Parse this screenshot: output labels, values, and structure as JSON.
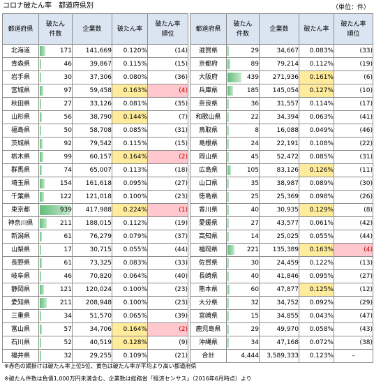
{
  "title": "コロナ破たん率　都道府県別",
  "unit": "（単位：件）",
  "headers": {
    "pref": "都道府県",
    "cnt1": "破たん",
    "cnt2": "件数",
    "companies": "企業数",
    "rate": "破たん率",
    "rank1": "破たん率",
    "rank2": "順位"
  },
  "colors": {
    "header_bg": "#dbe5f1",
    "top5": "#ffc7ce",
    "above_avg": "#ffeb9c",
    "bar": "#63be7b"
  },
  "left_rows": [
    {
      "pref": "北海道",
      "count": "171",
      "companies": "141,669",
      "rate": "0.120%",
      "rank": "(14)",
      "cv": 171,
      "hl": ""
    },
    {
      "pref": "青森県",
      "count": "46",
      "companies": "39,867",
      "rate": "0.115%",
      "rank": "(15)",
      "cv": 46,
      "hl": ""
    },
    {
      "pref": "岩手県",
      "count": "30",
      "companies": "37,306",
      "rate": "0.080%",
      "rank": "(36)",
      "cv": 30,
      "hl": ""
    },
    {
      "pref": "宮城県",
      "count": "97",
      "companies": "59,458",
      "rate": "0.163%",
      "rank": "(4)",
      "cv": 97,
      "hl": "r"
    },
    {
      "pref": "秋田県",
      "count": "27",
      "companies": "33,126",
      "rate": "0.081%",
      "rank": "(35)",
      "cv": 27,
      "hl": ""
    },
    {
      "pref": "山形県",
      "count": "56",
      "companies": "38,790",
      "rate": "0.144%",
      "rank": "(7)",
      "cv": 56,
      "hl": "y"
    },
    {
      "pref": "福島県",
      "count": "50",
      "companies": "58,708",
      "rate": "0.085%",
      "rank": "(31)",
      "cv": 50,
      "hl": ""
    },
    {
      "pref": "茨城県",
      "count": "92",
      "companies": "79,542",
      "rate": "0.115%",
      "rank": "(15)",
      "cv": 92,
      "hl": ""
    },
    {
      "pref": "栃木県",
      "count": "99",
      "companies": "60,157",
      "rate": "0.164%",
      "rank": "(2)",
      "cv": 99,
      "hl": "r"
    },
    {
      "pref": "群馬県",
      "count": "74",
      "companies": "65,007",
      "rate": "0.113%",
      "rank": "(18)",
      "cv": 74,
      "hl": ""
    },
    {
      "pref": "埼玉県",
      "count": "154",
      "companies": "161,618",
      "rate": "0.095%",
      "rank": "(27)",
      "cv": 154,
      "hl": ""
    },
    {
      "pref": "千葉県",
      "count": "122",
      "companies": "121,018",
      "rate": "0.100%",
      "rank": "(23)",
      "cv": 122,
      "hl": ""
    },
    {
      "pref": "東京都",
      "count": "939",
      "companies": "417,988",
      "rate": "0.224%",
      "rank": "(1)",
      "cv": 939,
      "hl": "r"
    },
    {
      "pref": "神奈川県",
      "count": "211",
      "companies": "188,015",
      "rate": "0.112%",
      "rank": "(19)",
      "cv": 211,
      "hl": ""
    },
    {
      "pref": "新潟県",
      "count": "61",
      "companies": "76,279",
      "rate": "0.079%",
      "rank": "(37)",
      "cv": 61,
      "hl": ""
    },
    {
      "pref": "山梨県",
      "count": "17",
      "companies": "30,715",
      "rate": "0.055%",
      "rank": "(44)",
      "cv": 17,
      "hl": ""
    },
    {
      "pref": "長野県",
      "count": "61",
      "companies": "73,325",
      "rate": "0.083%",
      "rank": "(33)",
      "cv": 61,
      "hl": ""
    },
    {
      "pref": "岐阜県",
      "count": "46",
      "companies": "70,820",
      "rate": "0.064%",
      "rank": "(40)",
      "cv": 46,
      "hl": ""
    },
    {
      "pref": "静岡県",
      "count": "121",
      "companies": "120,024",
      "rate": "0.100%",
      "rank": "(23)",
      "cv": 121,
      "hl": ""
    },
    {
      "pref": "愛知県",
      "count": "211",
      "companies": "208,948",
      "rate": "0.100%",
      "rank": "(23)",
      "cv": 211,
      "hl": ""
    },
    {
      "pref": "三重県",
      "count": "34",
      "companies": "51,570",
      "rate": "0.065%",
      "rank": "(39)",
      "cv": 34,
      "hl": ""
    },
    {
      "pref": "富山県",
      "count": "57",
      "companies": "34,706",
      "rate": "0.164%",
      "rank": "(2)",
      "cv": 57,
      "hl": "r"
    },
    {
      "pref": "石川県",
      "count": "52",
      "companies": "40,519",
      "rate": "0.128%",
      "rank": "(9)",
      "cv": 52,
      "hl": "y"
    },
    {
      "pref": "福井県",
      "count": "32",
      "companies": "29,255",
      "rate": "0.109%",
      "rank": "(21)",
      "cv": 32,
      "hl": ""
    }
  ],
  "right_rows": [
    {
      "pref": "滋賀県",
      "count": "29",
      "companies": "34,667",
      "rate": "0.083%",
      "rank": "(33)",
      "cv": 29,
      "hl": ""
    },
    {
      "pref": "京都府",
      "count": "89",
      "companies": "79,214",
      "rate": "0.112%",
      "rank": "(19)",
      "cv": 89,
      "hl": ""
    },
    {
      "pref": "大阪府",
      "count": "439",
      "companies": "271,936",
      "rate": "0.161%",
      "rank": "(6)",
      "cv": 439,
      "hl": "y"
    },
    {
      "pref": "兵庫県",
      "count": "185",
      "companies": "145,054",
      "rate": "0.127%",
      "rank": "(10)",
      "cv": 185,
      "hl": "y"
    },
    {
      "pref": "奈良県",
      "count": "36",
      "companies": "31,557",
      "rate": "0.114%",
      "rank": "(17)",
      "cv": 36,
      "hl": ""
    },
    {
      "pref": "和歌山県",
      "count": "22",
      "companies": "34,394",
      "rate": "0.063%",
      "rank": "(41)",
      "cv": 22,
      "hl": ""
    },
    {
      "pref": "鳥取県",
      "count": "8",
      "companies": "16,088",
      "rate": "0.049%",
      "rank": "(46)",
      "cv": 8,
      "hl": ""
    },
    {
      "pref": "島根県",
      "count": "24",
      "companies": "22,191",
      "rate": "0.108%",
      "rank": "(22)",
      "cv": 24,
      "hl": ""
    },
    {
      "pref": "岡山県",
      "count": "45",
      "companies": "52,472",
      "rate": "0.085%",
      "rank": "(31)",
      "cv": 45,
      "hl": ""
    },
    {
      "pref": "広島県",
      "count": "105",
      "companies": "83,126",
      "rate": "0.126%",
      "rank": "(11)",
      "cv": 105,
      "hl": "y"
    },
    {
      "pref": "山口県",
      "count": "35",
      "companies": "38,987",
      "rate": "0.089%",
      "rank": "(30)",
      "cv": 35,
      "hl": ""
    },
    {
      "pref": "徳島県",
      "count": "25",
      "companies": "25,369",
      "rate": "0.098%",
      "rank": "(26)",
      "cv": 25,
      "hl": ""
    },
    {
      "pref": "香川県",
      "count": "40",
      "companies": "30,935",
      "rate": "0.129%",
      "rank": "(8)",
      "cv": 40,
      "hl": "y"
    },
    {
      "pref": "愛媛県",
      "count": "27",
      "companies": "43,577",
      "rate": "0.061%",
      "rank": "(42)",
      "cv": 27,
      "hl": ""
    },
    {
      "pref": "高知県",
      "count": "14",
      "companies": "25,025",
      "rate": "0.055%",
      "rank": "(44)",
      "cv": 14,
      "hl": ""
    },
    {
      "pref": "福岡県",
      "count": "221",
      "companies": "135,389",
      "rate": "0.163%",
      "rank": "(4)",
      "cv": 221,
      "hl": "r"
    },
    {
      "pref": "佐賀県",
      "count": "30",
      "companies": "24,459",
      "rate": "0.122%",
      "rank": "(13)",
      "cv": 30,
      "hl": ""
    },
    {
      "pref": "長崎県",
      "count": "40",
      "companies": "41,846",
      "rate": "0.095%",
      "rank": "(27)",
      "cv": 40,
      "hl": ""
    },
    {
      "pref": "熊本県",
      "count": "60",
      "companies": "47,877",
      "rate": "0.125%",
      "rank": "(12)",
      "cv": 60,
      "hl": "y"
    },
    {
      "pref": "大分県",
      "count": "32",
      "companies": "34,752",
      "rate": "0.092%",
      "rank": "(29)",
      "cv": 32,
      "hl": ""
    },
    {
      "pref": "宮崎県",
      "count": "15",
      "companies": "34,855",
      "rate": "0.043%",
      "rank": "(47)",
      "cv": 15,
      "hl": ""
    },
    {
      "pref": "鹿児島県",
      "count": "29",
      "companies": "49,970",
      "rate": "0.058%",
      "rank": "(43)",
      "cv": 29,
      "hl": ""
    },
    {
      "pref": "沖縄県",
      "count": "34",
      "companies": "47,168",
      "rate": "0.072%",
      "rank": "(38)",
      "cv": 34,
      "hl": ""
    }
  ],
  "total": {
    "label": "合計",
    "count": "4,444",
    "companies": "3,589,333",
    "rate": "0.123%",
    "rank": "–"
  },
  "notes": [
    "※赤色の網掛けは破たん率上位5位、黄色は破たん率が平均より高い都道府県",
    "※破たん件数は負債1,000万円未満含む、企業数は総務省「経済センサス」（2016年6月時点）より"
  ]
}
